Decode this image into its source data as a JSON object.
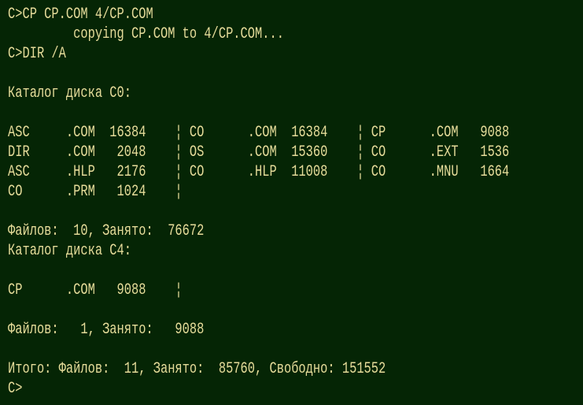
{
  "terminal": {
    "lines": [
      "C>CP CP.COM 4/CP.COM",
      "         copying CP.COM to 4/CP.COM...",
      "C>DIR /A",
      "",
      "Каталог диска C0:",
      "",
      "ASC     .COM  16384    ¦ CO      .COM  16384    ¦ CP      .COM   9088",
      "DIR     .COM   2048    ¦ OS      .COM  15360    ¦ CO      .EXT   1536",
      "ASC     .HLP   2176    ¦ CO      .HLP  11008    ¦ CO      .MNU   1664",
      "CO      .PRM   1024    ¦",
      "",
      "Файлов:  10, Занято:  76672",
      "Каталог диска C4:",
      "",
      "CP      .COM   9088    ¦",
      "",
      "Файлов:   1, Занято:   9088",
      "",
      "Итого: Файлов:  11, Занято:  85760, Свободно: 151552",
      "C>"
    ],
    "colors": {
      "background": "#052505",
      "text": "#e6dc9a"
    }
  }
}
